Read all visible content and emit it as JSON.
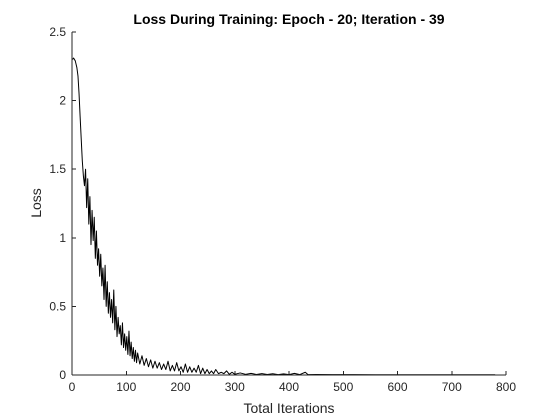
{
  "chart_data": {
    "type": "line",
    "title": "Loss During Training: Epoch - 20; Iteration - 39",
    "xlabel": "Total Iterations",
    "ylabel": "Loss",
    "xlim": [
      0,
      800
    ],
    "ylim": [
      0,
      2.5
    ],
    "xticks": [
      "0",
      "100",
      "200",
      "300",
      "400",
      "500",
      "600",
      "700",
      "800"
    ],
    "yticks": [
      "0",
      "0.5",
      "1",
      "1.5",
      "2",
      "2.5"
    ],
    "grid": false,
    "series_color": "#000000",
    "series": [
      {
        "points": [
          [
            1,
            2.3
          ],
          [
            3,
            2.31
          ],
          [
            6,
            2.29
          ],
          [
            9,
            2.24
          ],
          [
            11,
            2.18
          ],
          [
            13,
            2.05
          ],
          [
            15,
            1.88
          ],
          [
            17,
            1.72
          ],
          [
            19,
            1.56
          ],
          [
            21,
            1.45
          ],
          [
            23,
            1.38
          ],
          [
            25,
            1.5
          ],
          [
            27,
            1.22
          ],
          [
            29,
            1.43
          ],
          [
            31,
            1.1
          ],
          [
            33,
            1.3
          ],
          [
            35,
            0.95
          ],
          [
            37,
            1.2
          ],
          [
            39,
            0.98
          ],
          [
            41,
            1.15
          ],
          [
            43,
            0.85
          ],
          [
            45,
            1.05
          ],
          [
            47,
            0.8
          ],
          [
            49,
            0.92
          ],
          [
            51,
            0.72
          ],
          [
            53,
            0.88
          ],
          [
            55,
            0.65
          ],
          [
            57,
            0.78
          ],
          [
            59,
            0.55
          ],
          [
            61,
            0.8
          ],
          [
            63,
            0.5
          ],
          [
            65,
            0.68
          ],
          [
            67,
            0.45
          ],
          [
            69,
            0.6
          ],
          [
            71,
            0.42
          ],
          [
            73,
            0.55
          ],
          [
            75,
            0.38
          ],
          [
            77,
            0.62
          ],
          [
            79,
            0.33
          ],
          [
            81,
            0.5
          ],
          [
            83,
            0.28
          ],
          [
            85,
            0.42
          ],
          [
            87,
            0.3
          ],
          [
            89,
            0.36
          ],
          [
            91,
            0.22
          ],
          [
            93,
            0.38
          ],
          [
            95,
            0.2
          ],
          [
            97,
            0.3
          ],
          [
            99,
            0.18
          ],
          [
            101,
            0.28
          ],
          [
            103,
            0.15
          ],
          [
            105,
            0.32
          ],
          [
            107,
            0.14
          ],
          [
            109,
            0.24
          ],
          [
            111,
            0.12
          ],
          [
            113,
            0.2
          ],
          [
            115,
            0.1
          ],
          [
            117,
            0.18
          ],
          [
            119,
            0.09
          ],
          [
            121,
            0.16
          ],
          [
            125,
            0.08
          ],
          [
            129,
            0.14
          ],
          [
            133,
            0.07
          ],
          [
            137,
            0.12
          ],
          [
            141,
            0.06
          ],
          [
            145,
            0.11
          ],
          [
            149,
            0.05
          ],
          [
            153,
            0.1
          ],
          [
            157,
            0.05
          ],
          [
            161,
            0.09
          ],
          [
            165,
            0.04
          ],
          [
            169,
            0.08
          ],
          [
            173,
            0.04
          ],
          [
            177,
            0.1
          ],
          [
            181,
            0.03
          ],
          [
            185,
            0.07
          ],
          [
            189,
            0.03
          ],
          [
            193,
            0.09
          ],
          [
            197,
            0.03
          ],
          [
            201,
            0.06
          ],
          [
            205,
            0.02
          ],
          [
            209,
            0.08
          ],
          [
            213,
            0.02
          ],
          [
            217,
            0.06
          ],
          [
            221,
            0.02
          ],
          [
            225,
            0.05
          ],
          [
            229,
            0.02
          ],
          [
            233,
            0.07
          ],
          [
            237,
            0.01
          ],
          [
            241,
            0.05
          ],
          [
            245,
            0.01
          ],
          [
            249,
            0.04
          ],
          [
            253,
            0.01
          ],
          [
            257,
            0.03
          ],
          [
            261,
            0.01
          ],
          [
            265,
            0.04
          ],
          [
            270,
            0.01
          ],
          [
            275,
            0.02
          ],
          [
            280,
            0.01
          ],
          [
            285,
            0.03
          ],
          [
            290,
            0.005
          ],
          [
            295,
            0.02
          ],
          [
            300,
            0.005
          ],
          [
            310,
            0.015
          ],
          [
            320,
            0.005
          ],
          [
            330,
            0.012
          ],
          [
            340,
            0.004
          ],
          [
            350,
            0.01
          ],
          [
            360,
            0.004
          ],
          [
            370,
            0.009
          ],
          [
            380,
            0.003
          ],
          [
            390,
            0.008
          ],
          [
            400,
            0.003
          ],
          [
            410,
            0.012
          ],
          [
            420,
            0.003
          ],
          [
            430,
            0.02
          ],
          [
            435,
            0.003
          ],
          [
            450,
            0.004
          ],
          [
            480,
            0.003
          ],
          [
            520,
            0.003
          ],
          [
            560,
            0.002
          ],
          [
            600,
            0.002
          ],
          [
            650,
            0.002
          ],
          [
            700,
            0.002
          ],
          [
            750,
            0.002
          ],
          [
            780,
            0.002
          ]
        ]
      }
    ]
  }
}
